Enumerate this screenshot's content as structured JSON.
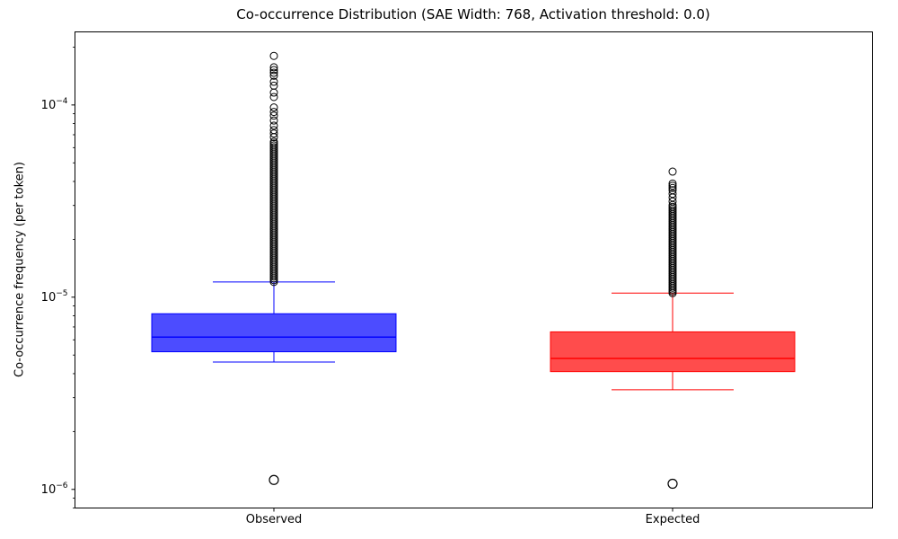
{
  "chart_data": {
    "type": "boxplot",
    "title": "Co-occurrence Distribution (SAE Width: 768, Activation threshold: 0.0)",
    "ylabel": "Co-occurrence frequency (per token)",
    "xlabel": "",
    "yscale": "log",
    "ylim": [
      8e-07,
      0.00024
    ],
    "ytick_exponents": [
      -6,
      -5,
      -4
    ],
    "grid": false,
    "legend": false,
    "categories": [
      "Observed",
      "Expected"
    ],
    "series": [
      {
        "name": "Observed",
        "color": "#0000ff",
        "fill_opacity": 0.7,
        "stats": {
          "whislo": 4.6e-06,
          "q1": 5.2e-06,
          "median": 6.2e-06,
          "q3": 8.2e-06,
          "whishi": 1.2e-05
        },
        "outliers_low": [
          1.12e-06
        ],
        "outlier_column": {
          "min": 1.2e-05,
          "max": 6.5e-05
        },
        "outliers_high": [
          6.8e-05,
          7.1e-05,
          7.4e-05,
          7.8e-05,
          8.3e-05,
          8.8e-05,
          9.2e-05,
          9.7e-05,
          0.00011,
          0.000116,
          0.000126,
          0.000132,
          0.000142,
          0.000147,
          0.000152,
          0.000157,
          0.00018
        ]
      },
      {
        "name": "Expected",
        "color": "#ff0000",
        "fill_opacity": 0.7,
        "stats": {
          "whislo": 3.3e-06,
          "q1": 4.1e-06,
          "median": 4.8e-06,
          "q3": 6.6e-06,
          "whishi": 1.05e-05
        },
        "outliers_low": [
          1.07e-06
        ],
        "outlier_column": {
          "min": 1.05e-05,
          "max": 3e-05
        },
        "outliers_high": [
          3.15e-05,
          3.3e-05,
          3.45e-05,
          3.6e-05,
          3.7e-05,
          3.8e-05,
          3.9e-05,
          4.5e-05
        ]
      }
    ]
  }
}
